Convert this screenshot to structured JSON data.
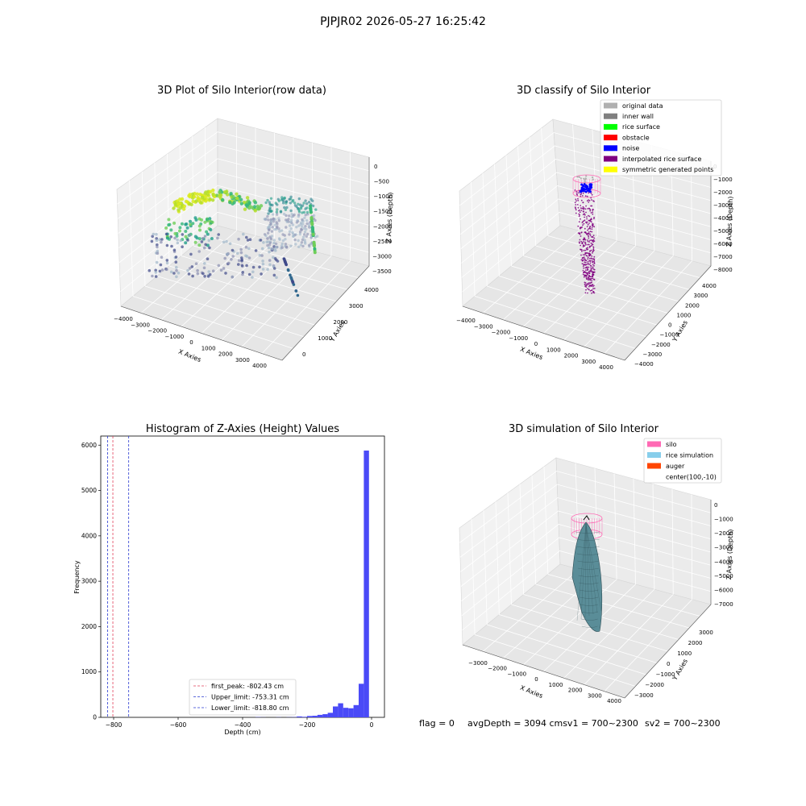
{
  "suptitle": "PJPJR02 2026-05-27 16:25:42",
  "footer": {
    "flag": "flag = 0",
    "avg": "avgDepth = 3094 cmsv1 = 700~2300",
    "sv2": "sv2 = 700~2300"
  },
  "colors": {
    "gray": "#b0b0b0",
    "inner_wall": "#808080",
    "rice_surface": "#00ff00",
    "obstacle": "#ff0000",
    "noise": "#0000ff",
    "interp": "#800080",
    "symmetric": "#ffff00",
    "silo": "#ff69b4",
    "rice_sim": "#87ceeb",
    "auger": "#ff4500",
    "hist_bar": "#4a4af7",
    "first_peak": "#e0405a",
    "limit": "#2a3ad0"
  },
  "chart_data": [
    {
      "type": "scatter",
      "title": "3D Plot of Silo Interior(row data)",
      "xlabel": "X Axies",
      "ylabel": "Y Axies",
      "zlabel": "Z Axies (Depth)",
      "xticks": [
        "−4000",
        "−3000",
        "−2000",
        "−1000",
        "0",
        "1000",
        "2000",
        "3000",
        "4000"
      ],
      "yticks": [
        "0",
        "1000",
        "2000",
        "3000",
        "4000"
      ],
      "zticks": [
        "0",
        "−500",
        "−1000",
        "−1500",
        "−2000",
        "−2500",
        "−3000",
        "−3500"
      ],
      "xlim": [
        -4000,
        4000
      ],
      "ylim": [
        -500,
        4500
      ],
      "zlim": [
        -3700,
        200
      ]
    },
    {
      "type": "scatter",
      "title": "3D classify of Silo Interior",
      "xlabel": "X Axies",
      "ylabel": "Y Axies",
      "zlabel": "Z Axies (Depth)",
      "xticks": [
        "−4000",
        "−3000",
        "−2000",
        "−1000",
        "0",
        "1000",
        "2000",
        "3000",
        "4000"
      ],
      "yticks": [
        "−4000",
        "−3000",
        "−2000",
        "−1000",
        "0",
        "1000",
        "2000",
        "3000",
        "4000"
      ],
      "zticks": [
        "0",
        "−1000",
        "−2000",
        "−3000",
        "−4000",
        "−5000",
        "−6000",
        "−7000",
        "−8000"
      ],
      "xlim": [
        -4000,
        4000
      ],
      "ylim": [
        -4000,
        4000
      ],
      "zlim": [
        -8500,
        500
      ],
      "legend": [
        "original data",
        "inner wall",
        "rice surface",
        "obstacle",
        "noise",
        "interpolated rice surface",
        "symmetric generated points"
      ],
      "legend_placement": "top-right"
    },
    {
      "type": "histogram",
      "title": "Histogram of Z-Axies (Height) Values",
      "xlabel": "Depth (cm)",
      "ylabel": "Frequency",
      "xlim": [
        -840,
        40
      ],
      "ylim": [
        0,
        6200
      ],
      "xticks": [
        -800,
        -600,
        -400,
        -200,
        0
      ],
      "xtick_labels": [
        "−800",
        "−600",
        "−400",
        "−200",
        "0"
      ],
      "yticks": [
        0,
        1000,
        2000,
        3000,
        4000,
        5000,
        6000
      ],
      "bin_width": 16,
      "bins": [
        {
          "x": -360,
          "v": 5
        },
        {
          "x": -344,
          "v": 2
        },
        {
          "x": -296,
          "v": 3
        },
        {
          "x": -264,
          "v": 3
        },
        {
          "x": -248,
          "v": 5
        },
        {
          "x": -232,
          "v": 20
        },
        {
          "x": -216,
          "v": 12
        },
        {
          "x": -200,
          "v": 30
        },
        {
          "x": -184,
          "v": 35
        },
        {
          "x": -168,
          "v": 55
        },
        {
          "x": -152,
          "v": 70
        },
        {
          "x": -136,
          "v": 100
        },
        {
          "x": -120,
          "v": 240
        },
        {
          "x": -104,
          "v": 310
        },
        {
          "x": -88,
          "v": 210
        },
        {
          "x": -72,
          "v": 200
        },
        {
          "x": -56,
          "v": 270
        },
        {
          "x": -40,
          "v": 740
        },
        {
          "x": -24,
          "v": 5880
        },
        {
          "x": -8,
          "v": 0
        }
      ],
      "lines": [
        {
          "label": "first_peak: -802.43 cm",
          "x": -802.43,
          "color_key": "first_peak"
        },
        {
          "label": "Upper_limit: -753.31 cm",
          "x": -753.31,
          "color_key": "limit"
        },
        {
          "label": "Lower_limit: -818.80 cm",
          "x": -818.8,
          "color_key": "limit"
        }
      ],
      "legend_placement": "lower-center"
    },
    {
      "type": "surface",
      "title": "3D simulation of Silo Interior",
      "xlabel": "X Axies",
      "ylabel": "Y Axies",
      "zlabel": "Z Axies (Depth)",
      "xticks": [
        "−3000",
        "−2000",
        "−1000",
        "0",
        "1000",
        "2000",
        "3000",
        "4000"
      ],
      "yticks": [
        "−3000",
        "−2000",
        "−1000",
        "0",
        "1000",
        "2000",
        "3000"
      ],
      "zticks": [
        "0",
        "−1000",
        "−2000",
        "−3000",
        "−4000",
        "−5000",
        "−6000",
        "−7000"
      ],
      "xlim": [
        -3500,
        4000
      ],
      "ylim": [
        -3500,
        3500
      ],
      "zlim": [
        -7500,
        500
      ],
      "legend": [
        "silo",
        "rice simulation",
        "auger",
        "center(100,-10)"
      ],
      "legend_placement": "top-right"
    }
  ]
}
